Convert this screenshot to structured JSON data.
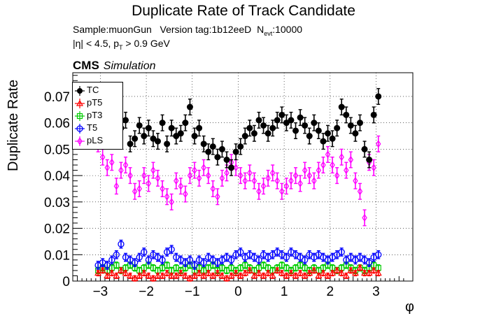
{
  "title": "Duplicate Rate of Track Candidate",
  "subtitle_sample": "Sample:muonGun",
  "subtitle_version": "Version tag:1b12eeD",
  "subtitle_nevt_prefix": "N",
  "subtitle_nevt_sub": "evt",
  "subtitle_nevt_value": ":10000",
  "cuts_eta": "|η| < 4.5, p",
  "cuts_pt_sub": "T",
  "cuts_pt": " > 0.9 GeV",
  "cms_label": "CMS",
  "simulation_label": "Simulation",
  "colors": {
    "TC": "#000000",
    "pT5": "#ff0000",
    "pT3": "#00cc00",
    "T5": "#0000ff",
    "pLS": "#ff00ff"
  },
  "chart_data": {
    "type": "scatter",
    "title": "Duplicate Rate of Track Candidate",
    "xlabel": "φ",
    "ylabel": "Duplicate Rate",
    "xlim": [
      -3.6,
      3.8
    ],
    "ylim": [
      0,
      0.079
    ],
    "x_ticks": [
      "−3",
      "−2",
      "−1",
      "0",
      "1",
      "2",
      "3"
    ],
    "y_ticks": [
      "0",
      "0.01",
      "0.02",
      "0.03",
      "0.04",
      "0.05",
      "0.06",
      "0.07"
    ],
    "grid": true,
    "legend_position": "top-left",
    "x": [
      -3.05,
      -2.95,
      -2.85,
      -2.75,
      -2.65,
      -2.55,
      -2.45,
      -2.35,
      -2.25,
      -2.15,
      -2.05,
      -1.95,
      -1.85,
      -1.75,
      -1.65,
      -1.55,
      -1.45,
      -1.35,
      -1.25,
      -1.15,
      -1.05,
      -0.95,
      -0.85,
      -0.75,
      -0.65,
      -0.55,
      -0.45,
      -0.35,
      -0.25,
      -0.15,
      -0.05,
      0.05,
      0.15,
      0.25,
      0.35,
      0.45,
      0.55,
      0.65,
      0.75,
      0.85,
      0.95,
      1.05,
      1.15,
      1.25,
      1.35,
      1.45,
      1.55,
      1.65,
      1.75,
      1.85,
      1.95,
      2.05,
      2.15,
      2.25,
      2.35,
      2.45,
      2.55,
      2.65,
      2.75,
      2.85,
      2.95,
      3.05
    ],
    "series": [
      {
        "name": "TC",
        "marker": "circle-filled",
        "values": [
          0.066,
          0.06,
          0.058,
          0.064,
          0.066,
          0.058,
          0.061,
          0.052,
          0.054,
          0.059,
          0.055,
          0.058,
          0.054,
          0.053,
          0.06,
          0.052,
          0.058,
          0.055,
          0.056,
          0.06,
          0.066,
          0.055,
          0.058,
          0.052,
          0.049,
          0.051,
          0.047,
          0.05,
          0.046,
          0.043,
          0.049,
          0.051,
          0.055,
          0.058,
          0.056,
          0.061,
          0.059,
          0.056,
          0.058,
          0.061,
          0.063,
          0.06,
          0.061,
          0.057,
          0.062,
          0.059,
          0.055,
          0.06,
          0.057,
          0.053,
          0.056,
          0.054,
          0.058,
          0.066,
          0.063,
          0.059,
          0.056,
          0.06,
          0.05,
          0.046,
          0.063,
          0.07
        ],
        "errors": [
          0.003,
          0.003,
          0.003,
          0.003,
          0.003,
          0.003,
          0.003,
          0.003,
          0.003,
          0.003,
          0.003,
          0.003,
          0.003,
          0.003,
          0.003,
          0.003,
          0.003,
          0.003,
          0.003,
          0.003,
          0.003,
          0.003,
          0.003,
          0.003,
          0.003,
          0.003,
          0.003,
          0.003,
          0.003,
          0.003,
          0.003,
          0.003,
          0.003,
          0.003,
          0.003,
          0.003,
          0.003,
          0.003,
          0.003,
          0.003,
          0.003,
          0.003,
          0.003,
          0.003,
          0.003,
          0.003,
          0.003,
          0.003,
          0.003,
          0.003,
          0.003,
          0.003,
          0.003,
          0.003,
          0.003,
          0.003,
          0.003,
          0.003,
          0.003,
          0.003,
          0.003,
          0.003
        ]
      },
      {
        "name": "pT5",
        "marker": "triangle-open",
        "values": [
          0.003,
          0.004,
          0.002,
          0.003,
          0.002,
          0.004,
          0.003,
          0.002,
          0.001,
          0.002,
          0.003,
          0.002,
          0.001,
          0.002,
          0.002,
          0.003,
          0.002,
          0.002,
          0.003,
          0.002,
          0.001,
          0.002,
          0.003,
          0.002,
          0.003,
          0.002,
          0.003,
          0.002,
          0.001,
          0.002,
          0.003,
          0.002,
          0.003,
          0.004,
          0.002,
          0.003,
          0.002,
          0.003,
          0.002,
          0.004,
          0.003,
          0.002,
          0.003,
          0.002,
          0.003,
          0.002,
          0.003,
          0.004,
          0.002,
          0.003,
          0.002,
          0.003,
          0.004,
          0.003,
          0.002,
          0.004,
          0.003,
          0.005,
          0.003,
          0.003,
          0.004,
          0.003
        ],
        "errors": [
          0.001,
          0.001,
          0.001,
          0.001,
          0.001,
          0.001,
          0.001,
          0.001,
          0.001,
          0.001,
          0.001,
          0.001,
          0.001,
          0.001,
          0.001,
          0.001,
          0.001,
          0.001,
          0.001,
          0.001,
          0.001,
          0.001,
          0.001,
          0.001,
          0.001,
          0.001,
          0.001,
          0.001,
          0.001,
          0.001,
          0.001,
          0.001,
          0.001,
          0.001,
          0.001,
          0.001,
          0.001,
          0.001,
          0.001,
          0.001,
          0.001,
          0.001,
          0.001,
          0.001,
          0.001,
          0.001,
          0.001,
          0.001,
          0.001,
          0.001,
          0.001,
          0.001,
          0.001,
          0.001,
          0.001,
          0.001,
          0.001,
          0.001,
          0.001,
          0.001,
          0.001,
          0.001
        ]
      },
      {
        "name": "pT3",
        "marker": "square-open",
        "values": [
          0.004,
          0.005,
          0.004,
          0.005,
          0.006,
          0.004,
          0.005,
          0.006,
          0.005,
          0.004,
          0.005,
          0.006,
          0.005,
          0.004,
          0.005,
          0.006,
          0.004,
          0.005,
          0.004,
          0.005,
          0.006,
          0.004,
          0.005,
          0.004,
          0.005,
          0.006,
          0.004,
          0.005,
          0.004,
          0.005,
          0.004,
          0.005,
          0.006,
          0.005,
          0.004,
          0.005,
          0.006,
          0.005,
          0.004,
          0.005,
          0.006,
          0.005,
          0.004,
          0.005,
          0.006,
          0.005,
          0.004,
          0.005,
          0.004,
          0.005,
          0.006,
          0.005,
          0.004,
          0.005,
          0.006,
          0.005,
          0.004,
          0.005,
          0.004,
          0.005,
          0.006,
          0.005
        ],
        "errors": [
          0.0012,
          0.0012,
          0.0012,
          0.0012,
          0.0012,
          0.0012,
          0.0012,
          0.0012,
          0.0012,
          0.0012,
          0.0012,
          0.0012,
          0.0012,
          0.0012,
          0.0012,
          0.0012,
          0.0012,
          0.0012,
          0.0012,
          0.0012,
          0.0012,
          0.0012,
          0.0012,
          0.0012,
          0.0012,
          0.0012,
          0.0012,
          0.0012,
          0.0012,
          0.0012,
          0.0012,
          0.0012,
          0.0012,
          0.0012,
          0.0012,
          0.0012,
          0.0012,
          0.0012,
          0.0012,
          0.0012,
          0.0012,
          0.0012,
          0.0012,
          0.0012,
          0.0012,
          0.0012,
          0.0012,
          0.0012,
          0.0012,
          0.0012,
          0.0012,
          0.0012,
          0.0012,
          0.0012,
          0.0012,
          0.0012,
          0.0012,
          0.0012,
          0.0012,
          0.0012,
          0.0012,
          0.0012
        ]
      },
      {
        "name": "T5",
        "marker": "circle-open",
        "values": [
          0.006,
          0.007,
          0.006,
          0.008,
          0.01,
          0.014,
          0.009,
          0.008,
          0.007,
          0.009,
          0.011,
          0.008,
          0.01,
          0.009,
          0.008,
          0.011,
          0.012,
          0.009,
          0.008,
          0.007,
          0.008,
          0.006,
          0.008,
          0.007,
          0.009,
          0.008,
          0.007,
          0.008,
          0.009,
          0.008,
          0.01,
          0.011,
          0.009,
          0.01,
          0.009,
          0.008,
          0.01,
          0.009,
          0.01,
          0.011,
          0.01,
          0.009,
          0.011,
          0.01,
          0.009,
          0.008,
          0.01,
          0.009,
          0.01,
          0.009,
          0.008,
          0.009,
          0.01,
          0.011,
          0.008,
          0.009,
          0.008,
          0.009,
          0.008,
          0.007,
          0.009,
          0.01
        ],
        "errors": [
          0.0015,
          0.0015,
          0.0015,
          0.0015,
          0.0015,
          0.0015,
          0.0015,
          0.0015,
          0.0015,
          0.0015,
          0.0015,
          0.0015,
          0.0015,
          0.0015,
          0.0015,
          0.0015,
          0.0015,
          0.0015,
          0.0015,
          0.0015,
          0.0015,
          0.0015,
          0.0015,
          0.0015,
          0.0015,
          0.0015,
          0.0015,
          0.0015,
          0.0015,
          0.0015,
          0.0015,
          0.0015,
          0.0015,
          0.0015,
          0.0015,
          0.0015,
          0.0015,
          0.0015,
          0.0015,
          0.0015,
          0.0015,
          0.0015,
          0.0015,
          0.0015,
          0.0015,
          0.0015,
          0.0015,
          0.0015,
          0.0015,
          0.0015,
          0.0015,
          0.0015,
          0.0015,
          0.0015,
          0.0015,
          0.0015,
          0.0015,
          0.0015,
          0.0015,
          0.0015,
          0.0015,
          0.0015
        ]
      },
      {
        "name": "pLS",
        "marker": "diamond-open",
        "values": [
          0.052,
          0.047,
          0.043,
          0.045,
          0.036,
          0.042,
          0.044,
          0.04,
          0.034,
          0.035,
          0.04,
          0.037,
          0.042,
          0.039,
          0.035,
          0.032,
          0.03,
          0.038,
          0.036,
          0.033,
          0.04,
          0.042,
          0.039,
          0.043,
          0.04,
          0.035,
          0.032,
          0.039,
          0.041,
          0.045,
          0.043,
          0.04,
          0.038,
          0.041,
          0.038,
          0.034,
          0.036,
          0.039,
          0.041,
          0.038,
          0.034,
          0.036,
          0.038,
          0.04,
          0.037,
          0.042,
          0.04,
          0.038,
          0.042,
          0.044,
          0.048,
          0.044,
          0.04,
          0.047,
          0.042,
          0.046,
          0.038,
          0.034,
          0.024,
          0.045,
          0.043,
          0.052
        ],
        "errors": [
          0.003,
          0.003,
          0.003,
          0.003,
          0.003,
          0.003,
          0.003,
          0.003,
          0.003,
          0.003,
          0.003,
          0.003,
          0.003,
          0.003,
          0.003,
          0.003,
          0.003,
          0.003,
          0.003,
          0.003,
          0.003,
          0.003,
          0.003,
          0.003,
          0.003,
          0.003,
          0.003,
          0.003,
          0.003,
          0.003,
          0.003,
          0.003,
          0.003,
          0.003,
          0.003,
          0.003,
          0.003,
          0.003,
          0.003,
          0.003,
          0.003,
          0.003,
          0.003,
          0.003,
          0.003,
          0.003,
          0.003,
          0.003,
          0.003,
          0.003,
          0.003,
          0.003,
          0.003,
          0.003,
          0.003,
          0.003,
          0.003,
          0.003,
          0.003,
          0.003,
          0.003,
          0.003
        ]
      }
    ]
  }
}
